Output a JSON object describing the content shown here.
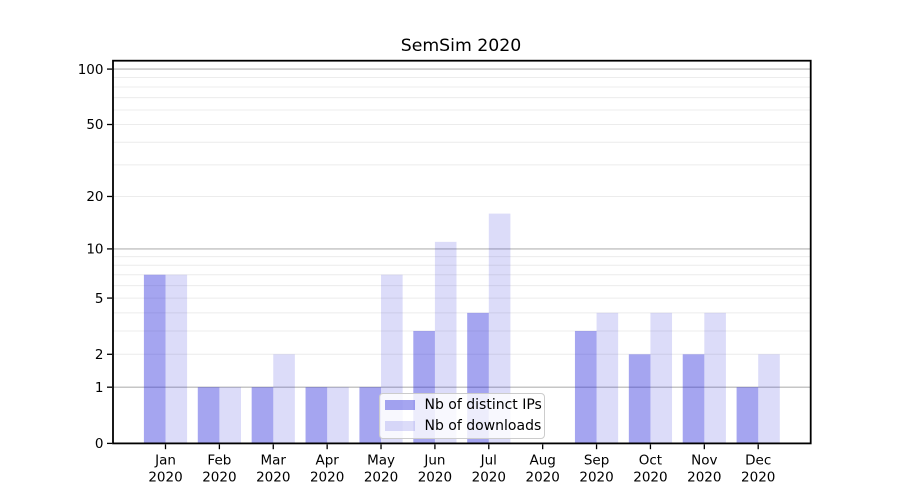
{
  "figure": {
    "background": "#ffffff"
  },
  "chart_data": {
    "type": "bar",
    "title": "SemSim 2020",
    "categories": [
      "Jan\n2020",
      "Feb\n2020",
      "Mar\n2020",
      "Apr\n2020",
      "May\n2020",
      "Jun\n2020",
      "Jul\n2020",
      "Aug\n2020",
      "Sep\n2020",
      "Oct\n2020",
      "Nov\n2020",
      "Dec\n2020"
    ],
    "series": [
      {
        "name": "Nb of distinct IPs",
        "color": "rgba(40,40,220,0.42)",
        "values": [
          7,
          1,
          1,
          1,
          1,
          3,
          4,
          0,
          3,
          2,
          2,
          1
        ]
      },
      {
        "name": "Nb of downloads",
        "color": "rgba(40,40,220,0.16)",
        "values": [
          7,
          1,
          2,
          1,
          7,
          11,
          16,
          0,
          4,
          4,
          4,
          2
        ]
      }
    ],
    "xlabel": "",
    "ylabel": "",
    "yscale": "log1p",
    "ylim": [
      0,
      111
    ],
    "ytick_values": [
      0,
      1,
      2,
      5,
      10,
      20,
      50,
      100
    ],
    "ytick_labels": [
      "0",
      "1",
      "2",
      "5",
      "10",
      "20",
      "50",
      "100"
    ],
    "major_gridlines": [
      1,
      10,
      100
    ],
    "minor_gridlines": [
      2,
      3,
      4,
      5,
      6,
      7,
      8,
      9,
      20,
      30,
      40,
      50,
      60,
      70,
      80,
      90
    ],
    "grid": true,
    "legend_position": "inside-bottom-center-left"
  },
  "colors": {
    "major_grid": "#b3b3b3",
    "minor_grid": "#ececec",
    "spine": "#000000",
    "tick": "#000000",
    "text": "#000000",
    "legend_border": "#cccccc",
    "legend_background": "rgba(255,255,255,0.8)"
  }
}
